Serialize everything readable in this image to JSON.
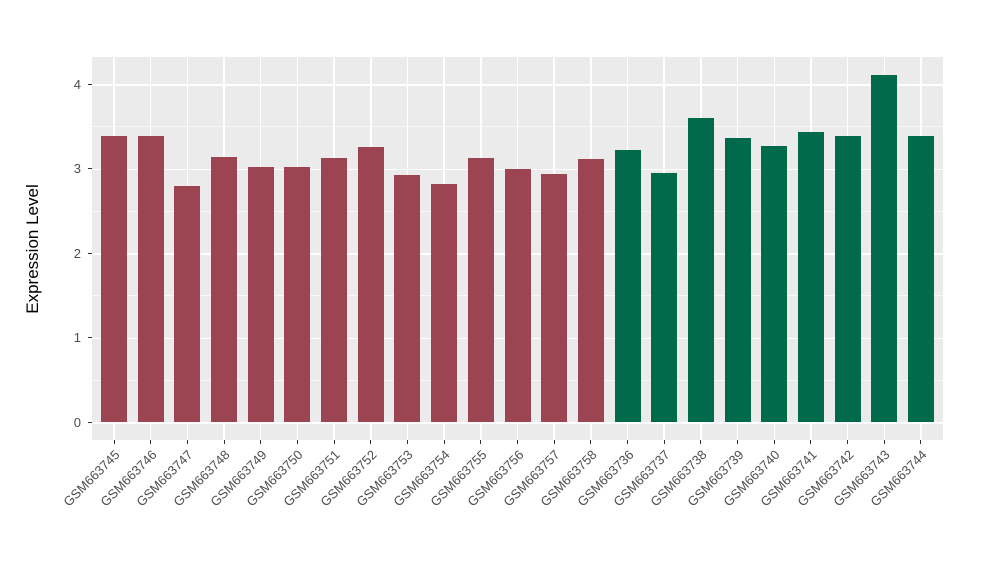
{
  "chart_data": {
    "type": "bar",
    "title": "",
    "xlabel": "",
    "ylabel": "Expression Level",
    "categories": [
      "GSM663745",
      "GSM663746",
      "GSM663747",
      "GSM663748",
      "GSM663749",
      "GSM663750",
      "GSM663751",
      "GSM663752",
      "GSM663753",
      "GSM663754",
      "GSM663755",
      "GSM663756",
      "GSM663757",
      "GSM663758",
      "GSM663736",
      "GSM663737",
      "GSM663738",
      "GSM663739",
      "GSM663740",
      "GSM663741",
      "GSM663742",
      "GSM663743",
      "GSM663744"
    ],
    "values": [
      3.38,
      3.38,
      2.79,
      3.14,
      3.02,
      3.02,
      3.12,
      3.25,
      2.93,
      2.82,
      3.12,
      3.0,
      2.94,
      3.11,
      3.22,
      2.95,
      3.6,
      3.36,
      3.27,
      3.43,
      3.38,
      4.11,
      3.38
    ],
    "bar_colors": [
      "#9C4452",
      "#9C4452",
      "#9C4452",
      "#9C4452",
      "#9C4452",
      "#9C4452",
      "#9C4452",
      "#9C4452",
      "#9C4452",
      "#9C4452",
      "#9C4452",
      "#9C4452",
      "#9C4452",
      "#9C4452",
      "#006A4B",
      "#006A4B",
      "#006A4B",
      "#006A4B",
      "#006A4B",
      "#006A4B",
      "#006A4B",
      "#006A4B",
      "#006A4B"
    ],
    "group_colors": {
      "left_group": "#9C4452",
      "right_group": "#006A4B"
    },
    "yticks": [
      0,
      1,
      2,
      3,
      4
    ],
    "ylim": [
      -0.21,
      4.32
    ],
    "grid": true,
    "legend_position": "none",
    "panel_background": "#EBEBEB",
    "grid_color": "#FFFFFF",
    "tick_color": "#333333",
    "tick_label_color": "#4D4D4D"
  }
}
